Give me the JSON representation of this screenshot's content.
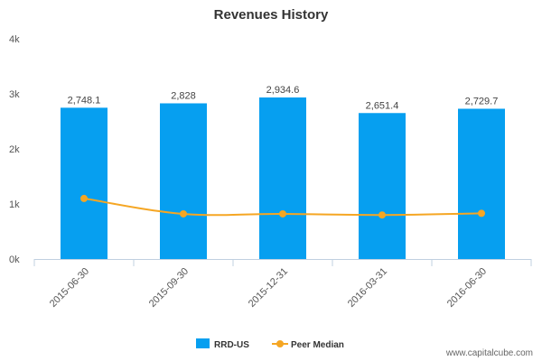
{
  "chart_data": {
    "type": "bar",
    "title": "Revenues History",
    "categories": [
      "2015-06-30",
      "2015-09-30",
      "2015-12-31",
      "2016-03-31",
      "2016-06-30"
    ],
    "series": [
      {
        "name": "RRD-US",
        "type": "bar",
        "color": "#069ff0",
        "values": [
          2748.1,
          2828,
          2934.6,
          2651.4,
          2729.7
        ],
        "labels": [
          "2,748.1",
          "2,828",
          "2,934.6",
          "2,651.4",
          "2,729.7"
        ]
      },
      {
        "name": "Peer Median",
        "type": "line",
        "color": "#f5a623",
        "values": [
          1100,
          820,
          820,
          800,
          830
        ]
      }
    ],
    "ylim": [
      0,
      4000
    ],
    "yticks": [
      0,
      1000,
      2000,
      3000,
      4000
    ],
    "ytick_labels": [
      "0k",
      "1k",
      "2k",
      "3k",
      "4k"
    ],
    "grid": false,
    "legend": "bottom-center"
  },
  "watermark": "www.capitalcube.com"
}
